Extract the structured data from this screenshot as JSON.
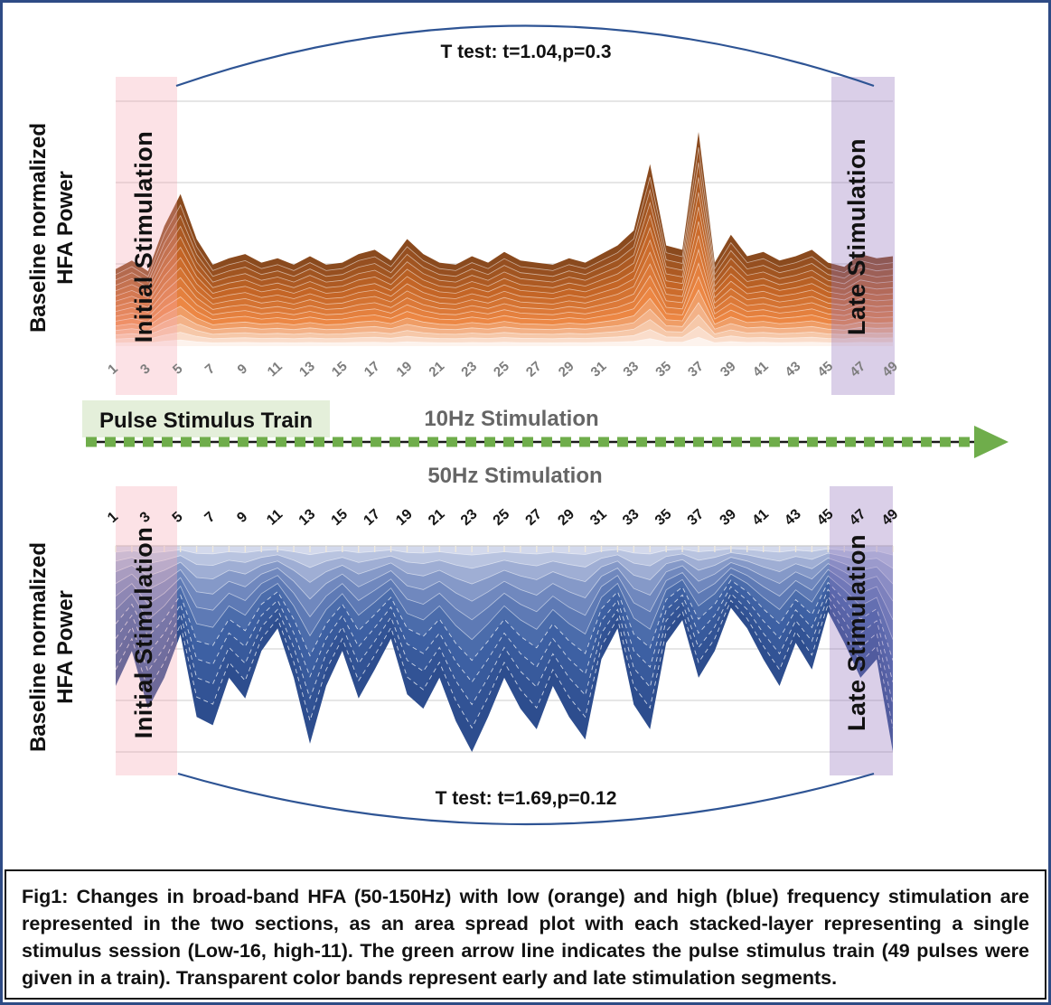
{
  "figure": {
    "ylabel_line1": "Baseline normalized",
    "ylabel_line2": "HFA Power",
    "pulse_train_label": "Pulse Stimulus Train",
    "caption": "Fig1: Changes in broad-band HFA (50-150Hz) with low (orange) and high (blue) frequency stimulation are represented in the two sections, as an area spread plot with each stacked-layer representing a single stimulus session (Low-16, high-11). The green arrow line indicates the pulse stimulus train (49 pulses were given in a train). Transparent color bands represent early and late stimulation segments."
  },
  "colors": {
    "outer_border_navy": "#2e4b85",
    "arc_blue": "#2e5494",
    "gridline_gray": "#d6d6d6",
    "title_gray": "#666666",
    "tick_gray": "#7d7d7d",
    "band_pink": "rgba(246,166,178,0.32)",
    "band_purple": "rgba(148,118,188,0.35)",
    "arrow_green": "#6fad4b",
    "green_box_bg": "#e4efda",
    "orange_dark": "#8a4a1e",
    "orange_light": "#fdf3ed",
    "blue_dark": "#2d4d8e",
    "blue_light": "#d3d9ec"
  },
  "chart_data": [
    {
      "type": "stacked_area",
      "title": "10Hz Stimulation",
      "color_family": "orange",
      "orientation": "upward",
      "sessions": 16,
      "x_range": [
        1,
        49
      ],
      "tick_labels": [
        "1",
        "3",
        "5",
        "7",
        "9",
        "11",
        "13",
        "15",
        "17",
        "19",
        "21",
        "23",
        "25",
        "27",
        "29",
        "31",
        "33",
        "35",
        "37",
        "39",
        "41",
        "43",
        "45",
        "47",
        "49"
      ],
      "envelope_pct": [
        36,
        40,
        35,
        56,
        71,
        50,
        38,
        41,
        43,
        39,
        41,
        38,
        42,
        38,
        39,
        43,
        45,
        40,
        50,
        43,
        39,
        38,
        42,
        39,
        44,
        40,
        39,
        38,
        41,
        39,
        43,
        47,
        54,
        85,
        47,
        45,
        100,
        39,
        52,
        42,
        44,
        40,
        42,
        45,
        39,
        37,
        43,
        41,
        42
      ],
      "ylabel": "Baseline normalized HFA Power",
      "annotation": "T test: t=1.04,p=0.3",
      "grid": true,
      "bands": [
        {
          "label": "Initial Stimulation",
          "pulses": [
            1,
            4
          ]
        },
        {
          "label": "Late Stimulation",
          "pulses": [
            45,
            49
          ]
        }
      ],
      "palette": [
        "#8a4a1e",
        "#c46526",
        "#ec8744",
        "#fdf3ed"
      ]
    },
    {
      "type": "stacked_area",
      "title": "50Hz Stimulation",
      "color_family": "blue",
      "orientation": "inverted",
      "sessions": 11,
      "x_range": [
        1,
        49
      ],
      "tick_labels": [
        "1",
        "3",
        "5",
        "7",
        "9",
        "11",
        "13",
        "15",
        "17",
        "19",
        "21",
        "23",
        "25",
        "27",
        "29",
        "31",
        "33",
        "35",
        "37",
        "39",
        "41",
        "43",
        "45",
        "47",
        "49"
      ],
      "envelope_pct": [
        68,
        51,
        79,
        64,
        43,
        83,
        87,
        64,
        74,
        51,
        40,
        64,
        96,
        68,
        51,
        74,
        60,
        45,
        72,
        79,
        64,
        85,
        100,
        83,
        64,
        79,
        89,
        68,
        83,
        94,
        55,
        40,
        77,
        89,
        47,
        36,
        64,
        51,
        30,
        40,
        55,
        68,
        47,
        60,
        32,
        47,
        64,
        55,
        100
      ],
      "ylabel": "Baseline normalized HFA Power",
      "annotation": "T test: t=1.69,p=0.12",
      "grid": true,
      "bands": [
        {
          "label": "Initial Stimulation",
          "pulses": [
            1,
            4
          ]
        },
        {
          "label": "Late Stimulation",
          "pulses": [
            45,
            49
          ]
        }
      ],
      "palette": [
        "#2d4d8e",
        "#3f62a5",
        "#7c92c4",
        "#d3d9ec"
      ]
    }
  ]
}
